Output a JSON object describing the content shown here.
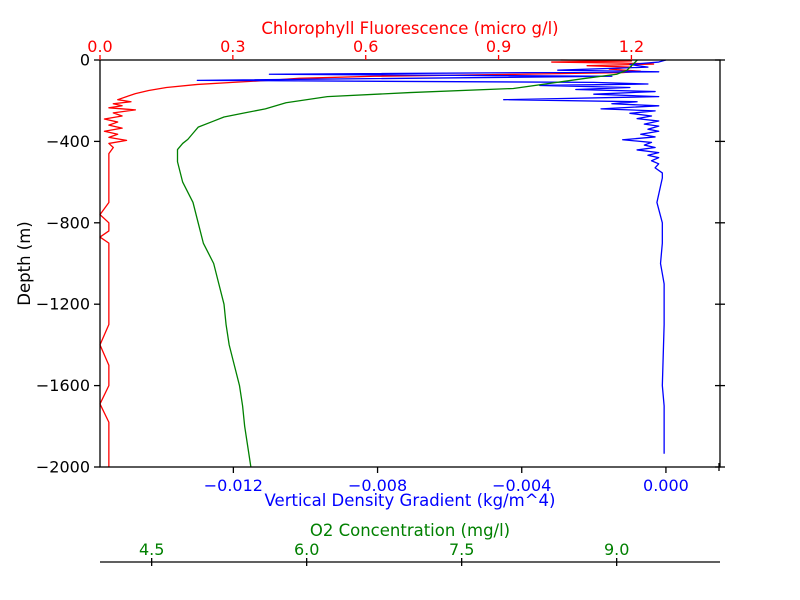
{
  "chart_data": {
    "type": "line",
    "colors": {
      "chlorophyll": "#ff0000",
      "density": "#0000ff",
      "oxygen": "#008000",
      "frame": "#000000"
    },
    "y_axis": {
      "label": "Depth (m)",
      "range": [
        -2000,
        0
      ],
      "ticks": [
        0,
        -400,
        -800,
        -1200,
        -1600,
        -2000
      ],
      "tick_labels": [
        "0",
        "−400",
        "−800",
        "−1200",
        "−1600",
        "−2000"
      ]
    },
    "x_axes": {
      "density": {
        "label": "Vertical Density Gradient (kg/m^4)",
        "position": "bottom",
        "range": [
          -0.0157,
          0.0015
        ],
        "ticks": [
          -0.012,
          -0.008,
          -0.004,
          0.0
        ],
        "tick_labels": [
          "−0.012",
          "−0.008",
          "−0.004",
          "0.000"
        ]
      },
      "chlorophyll": {
        "label": "Chlorophyll Fluorescence (micro g/l)",
        "position": "top",
        "range": [
          0.0,
          1.4
        ],
        "ticks": [
          0.0,
          0.3,
          0.6,
          0.9,
          1.2
        ],
        "tick_labels": [
          "0.0",
          "0.3",
          "0.6",
          "0.9",
          "1.2"
        ]
      },
      "oxygen": {
        "label": "O2 Concentration (mg/l)",
        "position": "bottom-offset",
        "range": [
          4.0,
          10.0
        ],
        "ticks": [
          4.5,
          6.0,
          7.5,
          9.0
        ],
        "tick_labels": [
          "4.5",
          "6.0",
          "7.5",
          "9.0"
        ]
      }
    },
    "series": [
      {
        "key": "chlorophyll",
        "axis": "chlorophyll",
        "points": [
          [
            1.04,
            0
          ],
          [
            1.2,
            -5
          ],
          [
            1.02,
            -10
          ],
          [
            1.18,
            -15
          ],
          [
            1.25,
            -20
          ],
          [
            1.1,
            -28
          ],
          [
            1.2,
            -35
          ],
          [
            1.15,
            -45
          ],
          [
            1.22,
            -55
          ],
          [
            1.18,
            -62
          ],
          [
            0.95,
            -70
          ],
          [
            0.62,
            -80
          ],
          [
            0.45,
            -90
          ],
          [
            0.38,
            -100
          ],
          [
            0.3,
            -110
          ],
          [
            0.22,
            -120
          ],
          [
            0.15,
            -135
          ],
          [
            0.11,
            -150
          ],
          [
            0.08,
            -165
          ],
          [
            0.06,
            -180
          ],
          [
            0.04,
            -195
          ],
          [
            0.07,
            -205
          ],
          [
            0.03,
            -215
          ],
          [
            0.05,
            -225
          ],
          [
            0.02,
            -235
          ],
          [
            0.08,
            -245
          ],
          [
            0.03,
            -260
          ],
          [
            0.05,
            -275
          ],
          [
            0.01,
            -290
          ],
          [
            0.04,
            -305
          ],
          [
            0.02,
            -320
          ],
          [
            0.05,
            -335
          ],
          [
            0.01,
            -350
          ],
          [
            0.04,
            -365
          ],
          [
            0.02,
            -380
          ],
          [
            0.06,
            -395
          ],
          [
            0.02,
            -410
          ],
          [
            0.03,
            -430
          ],
          [
            0.02,
            -460
          ],
          [
            0.02,
            -520
          ],
          [
            0.02,
            -600
          ],
          [
            0.02,
            -700
          ],
          [
            0.0,
            -760
          ],
          [
            0.02,
            -800
          ],
          [
            0.02,
            -840
          ],
          [
            0.0,
            -870
          ],
          [
            0.02,
            -900
          ],
          [
            0.02,
            -1000
          ],
          [
            0.02,
            -1100
          ],
          [
            0.02,
            -1200
          ],
          [
            0.02,
            -1300
          ],
          [
            0.0,
            -1400
          ],
          [
            0.02,
            -1500
          ],
          [
            0.02,
            -1600
          ],
          [
            0.0,
            -1690
          ],
          [
            0.02,
            -1780
          ],
          [
            0.02,
            -1900
          ],
          [
            0.02,
            -2000
          ]
        ]
      },
      {
        "key": "density",
        "axis": "density",
        "points": [
          [
            0.0,
            0
          ],
          [
            -0.0002,
            -10
          ],
          [
            -0.001,
            -22
          ],
          [
            -0.0005,
            -35
          ],
          [
            -0.003,
            -50
          ],
          [
            -0.0002,
            -58
          ],
          [
            -0.011,
            -70
          ],
          [
            -0.0015,
            -80
          ],
          [
            -0.013,
            -100
          ],
          [
            -0.002,
            -110
          ],
          [
            -0.0005,
            -118
          ],
          [
            -0.0035,
            -125
          ],
          [
            -0.001,
            -135
          ],
          [
            -0.0025,
            -145
          ],
          [
            -0.0003,
            -155
          ],
          [
            -0.002,
            -168
          ],
          [
            -0.0002,
            -180
          ],
          [
            -0.0045,
            -195
          ],
          [
            -0.0008,
            -205
          ],
          [
            -0.0015,
            -215
          ],
          [
            -0.0002,
            -225
          ],
          [
            -0.0018,
            -240
          ],
          [
            -0.0003,
            -250
          ],
          [
            -0.001,
            -262
          ],
          [
            -0.0004,
            -275
          ],
          [
            -0.0008,
            -288
          ],
          [
            -0.0002,
            -300
          ],
          [
            -0.0006,
            -315
          ],
          [
            -0.0002,
            -325
          ],
          [
            -0.0005,
            -340
          ],
          [
            -0.0002,
            -350
          ],
          [
            -0.0007,
            -365
          ],
          [
            -0.0003,
            -378
          ],
          [
            -0.0012,
            -392
          ],
          [
            -0.0004,
            -405
          ],
          [
            -0.0006,
            -418
          ],
          [
            -0.0003,
            -430
          ],
          [
            -0.0008,
            -442
          ],
          [
            -0.0002,
            -455
          ],
          [
            -0.0005,
            -468
          ],
          [
            -0.0002,
            -480
          ],
          [
            -0.0004,
            -495
          ],
          [
            -0.0002,
            -510
          ],
          [
            -0.0003,
            -530
          ],
          [
            -0.0001,
            -555
          ],
          [
            -0.0001,
            -580
          ],
          [
            -0.00015,
            -620
          ],
          [
            -0.00025,
            -700
          ],
          [
            -0.0001,
            -800
          ],
          [
            -0.0001,
            -900
          ],
          [
            -0.00015,
            -1000
          ],
          [
            -0.0001,
            -1050
          ],
          [
            -5e-05,
            -1100
          ],
          [
            -5e-05,
            -1300
          ],
          [
            -0.0001,
            -1600
          ],
          [
            -5e-05,
            -1700
          ],
          [
            -5e-05,
            -1935
          ]
        ]
      },
      {
        "key": "oxygen",
        "axis": "oxygen",
        "points": [
          [
            9.2,
            0
          ],
          [
            9.1,
            -50
          ],
          [
            9.0,
            -70
          ],
          [
            8.7,
            -90
          ],
          [
            8.0,
            -140
          ],
          [
            7.0,
            -160
          ],
          [
            6.2,
            -180
          ],
          [
            5.8,
            -210
          ],
          [
            5.6,
            -240
          ],
          [
            5.4,
            -260
          ],
          [
            5.2,
            -280
          ],
          [
            5.1,
            -300
          ],
          [
            4.95,
            -330
          ],
          [
            4.9,
            -360
          ],
          [
            4.85,
            -390
          ],
          [
            4.8,
            -410
          ],
          [
            4.75,
            -440
          ],
          [
            4.75,
            -500
          ],
          [
            4.8,
            -600
          ],
          [
            4.9,
            -700
          ],
          [
            4.95,
            -800
          ],
          [
            5.0,
            -900
          ],
          [
            5.1,
            -1000
          ],
          [
            5.15,
            -1100
          ],
          [
            5.2,
            -1200
          ],
          [
            5.22,
            -1300
          ],
          [
            5.25,
            -1400
          ],
          [
            5.3,
            -1500
          ],
          [
            5.35,
            -1600
          ],
          [
            5.38,
            -1700
          ],
          [
            5.4,
            -1800
          ],
          [
            5.43,
            -1900
          ],
          [
            5.46,
            -2000
          ]
        ]
      }
    ]
  }
}
